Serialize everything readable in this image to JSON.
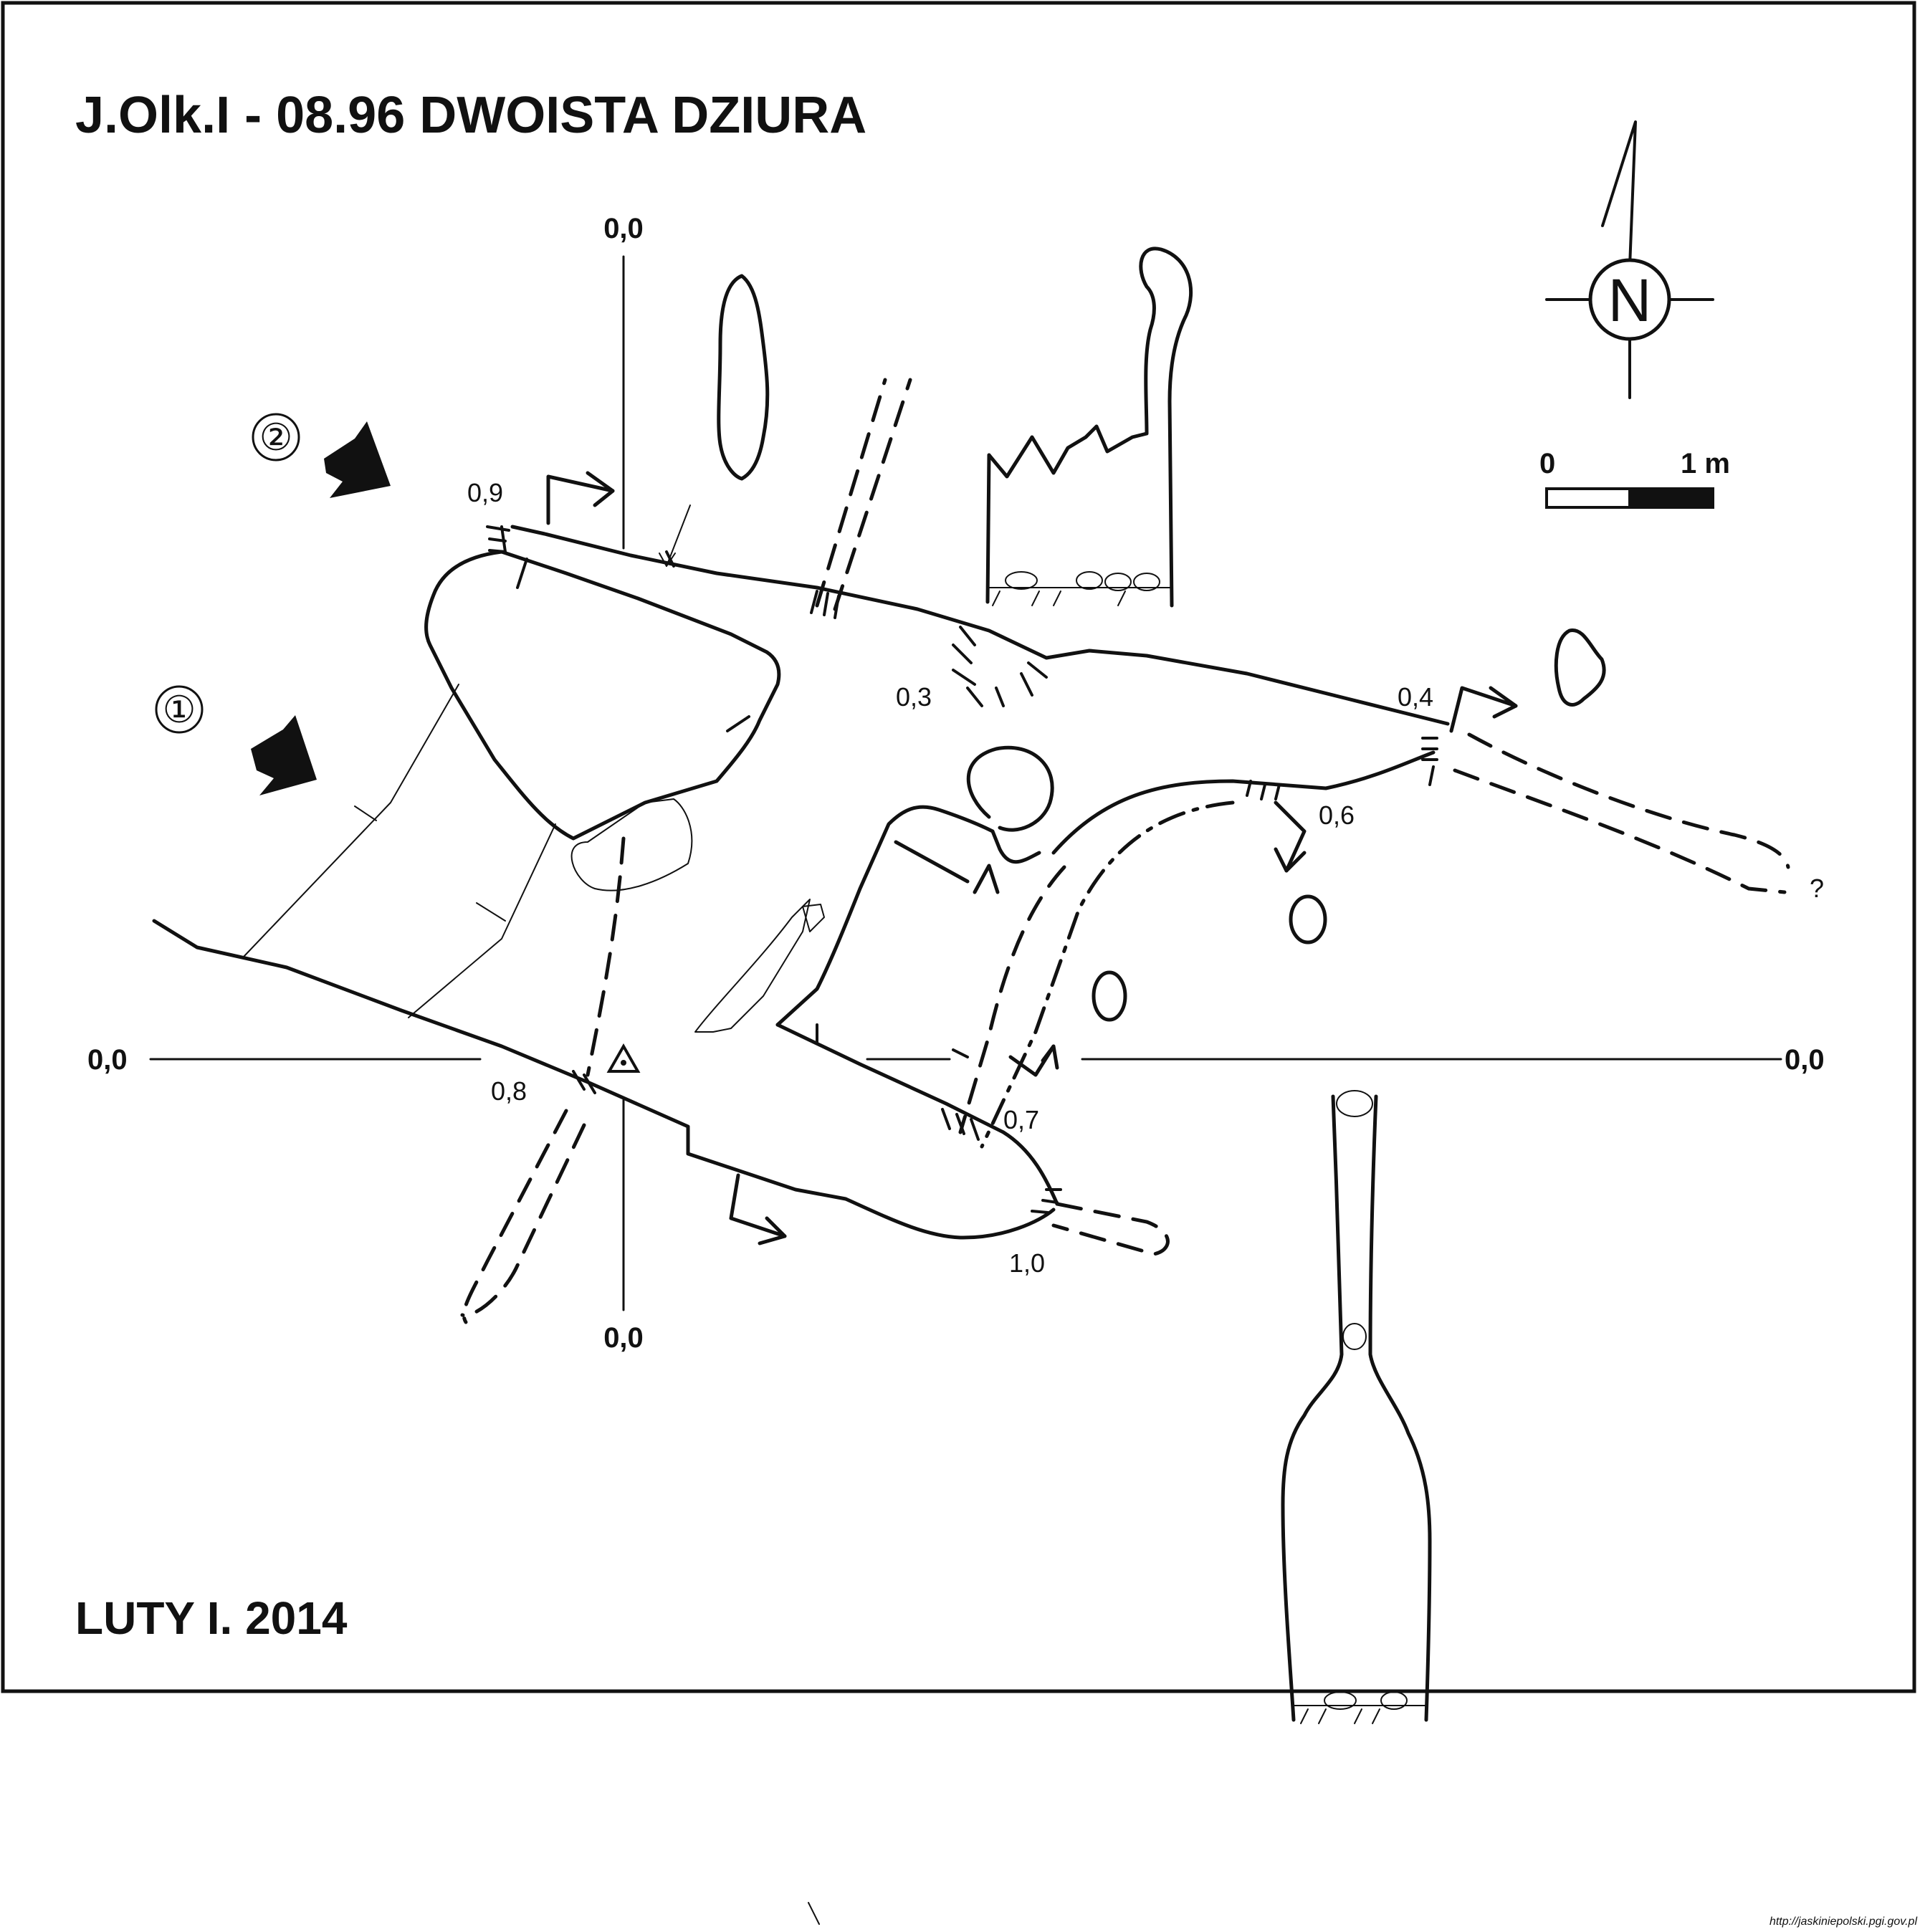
{
  "title": "J.Olk.I - 08.96 DWOISTA DZIURA",
  "author": "LUTY I. 2014",
  "north_label": "N",
  "scale": {
    "start": "0",
    "end": "1 m"
  },
  "axis_labels": {
    "top": "0,0",
    "bottom": "0,0",
    "left": "0,0",
    "right": "0,0"
  },
  "entrances": {
    "first": "①",
    "second": "②"
  },
  "heights": {
    "h09": "0,9",
    "h03": "0,3",
    "h04": "0,4",
    "h06": "0,6",
    "h07": "0,7",
    "h08": "0,8",
    "h10": "1,0",
    "unknown": "?"
  },
  "url": "http://jaskiniepolski.pgi.gov.pl"
}
